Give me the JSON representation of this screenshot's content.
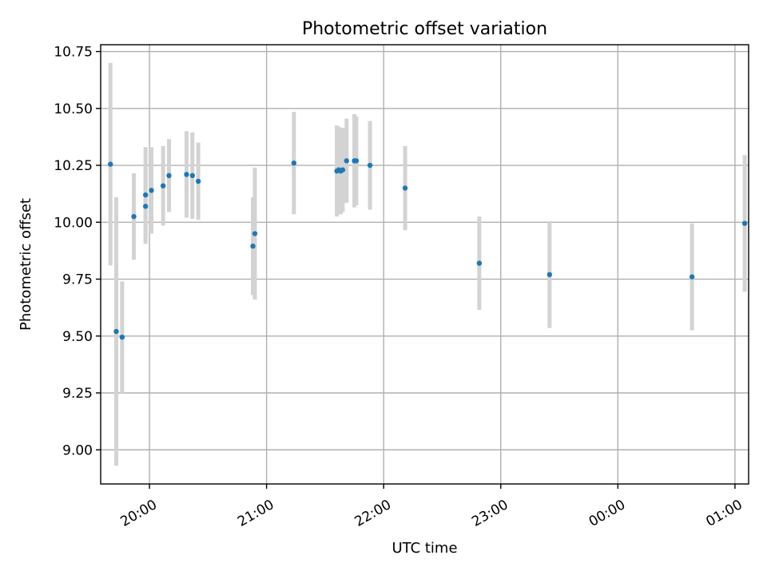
{
  "chart_data": {
    "type": "scatter",
    "title": "Photometric offset variation",
    "xlabel": "UTC time",
    "ylabel": "Photometric offset",
    "xlim": [
      "19:35",
      "25:07"
    ],
    "ylim": [
      8.85,
      10.78
    ],
    "x_ticks": [
      {
        "value": "20:00",
        "label": "20:00"
      },
      {
        "value": "21:00",
        "label": "21:00"
      },
      {
        "value": "22:00",
        "label": "22:00"
      },
      {
        "value": "23:00",
        "label": "23:00"
      },
      {
        "value": "24:00",
        "label": "00:00"
      },
      {
        "value": "25:00",
        "label": "01:00"
      }
    ],
    "y_ticks": [
      "9.00",
      "9.25",
      "9.50",
      "9.75",
      "10.00",
      "10.25",
      "10.50",
      "10.75"
    ],
    "grid": true,
    "colors": {
      "points": "#1f77b4",
      "errorbars": "#d3d3d3"
    },
    "series": [
      {
        "points": [
          {
            "x": "19:40",
            "y": 10.255,
            "err": 0.445
          },
          {
            "x": "19:43",
            "y": 9.52,
            "err": 0.59
          },
          {
            "x": "19:46",
            "y": 9.495,
            "err": 0.245
          },
          {
            "x": "19:52",
            "y": 10.025,
            "err": 0.19
          },
          {
            "x": "19:58",
            "y": 10.12,
            "err": 0.21
          },
          {
            "x": "19:58",
            "y": 10.07,
            "err": 0.165
          },
          {
            "x": "20:01",
            "y": 10.14,
            "err": 0.19
          },
          {
            "x": "20:07",
            "y": 10.16,
            "err": 0.175
          },
          {
            "x": "20:10",
            "y": 10.205,
            "err": 0.16
          },
          {
            "x": "20:19",
            "y": 10.21,
            "err": 0.19
          },
          {
            "x": "20:22",
            "y": 10.205,
            "err": 0.19
          },
          {
            "x": "20:25",
            "y": 10.18,
            "err": 0.17
          },
          {
            "x": "20:53",
            "y": 9.895,
            "err": 0.215
          },
          {
            "x": "20:54",
            "y": 9.95,
            "err": 0.29
          },
          {
            "x": "21:14",
            "y": 10.26,
            "err": 0.225
          },
          {
            "x": "21:36",
            "y": 10.225,
            "err": 0.2
          },
          {
            "x": "21:37",
            "y": 10.23,
            "err": 0.19
          },
          {
            "x": "21:38",
            "y": 10.225,
            "err": 0.19
          },
          {
            "x": "21:39",
            "y": 10.23,
            "err": 0.185
          },
          {
            "x": "21:41",
            "y": 10.27,
            "err": 0.185
          },
          {
            "x": "21:45",
            "y": 10.27,
            "err": 0.205
          },
          {
            "x": "21:46",
            "y": 10.27,
            "err": 0.195
          },
          {
            "x": "21:53",
            "y": 10.25,
            "err": 0.195
          },
          {
            "x": "22:11",
            "y": 10.15,
            "err": 0.185
          },
          {
            "x": "22:49",
            "y": 9.82,
            "err": 0.205
          },
          {
            "x": "23:25",
            "y": 9.77,
            "err": 0.235
          },
          {
            "x": "24:38",
            "y": 9.76,
            "err": 0.235
          },
          {
            "x": "25:05",
            "y": 9.995,
            "err": 0.3
          }
        ]
      }
    ]
  }
}
